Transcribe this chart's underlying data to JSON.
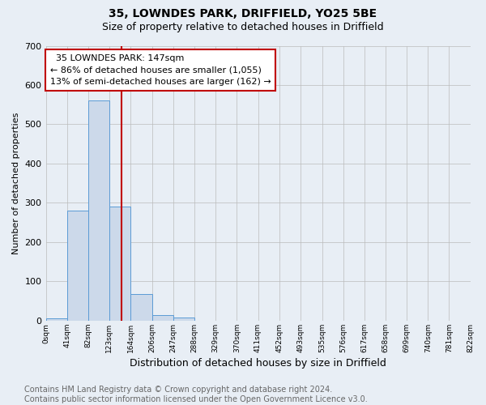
{
  "title": "35, LOWNDES PARK, DRIFFIELD, YO25 5BE",
  "subtitle": "Size of property relative to detached houses in Driffield",
  "xlabel": "Distribution of detached houses by size in Driffield",
  "ylabel": "Number of detached properties",
  "bin_edges": [
    0,
    41,
    82,
    123,
    164,
    206,
    247,
    288,
    329,
    370,
    411,
    452,
    493,
    535,
    576,
    617,
    658,
    699,
    740,
    781,
    822
  ],
  "bin_labels": [
    "0sqm",
    "41sqm",
    "82sqm",
    "123sqm",
    "164sqm",
    "206sqm",
    "247sqm",
    "288sqm",
    "329sqm",
    "370sqm",
    "411sqm",
    "452sqm",
    "493sqm",
    "535sqm",
    "576sqm",
    "617sqm",
    "658sqm",
    "699sqm",
    "740sqm",
    "781sqm",
    "822sqm"
  ],
  "counts": [
    5,
    280,
    560,
    290,
    68,
    14,
    9,
    0,
    0,
    0,
    0,
    0,
    0,
    0,
    0,
    0,
    0,
    0,
    0,
    0
  ],
  "bar_color": "#ccd9ea",
  "bar_edge_color": "#5b9bd5",
  "property_value": 147,
  "property_line_color": "#c00000",
  "annotation_line1": "  35 LOWNDES PARK: 147sqm",
  "annotation_line2": "← 86% of detached houses are smaller (1,055)",
  "annotation_line3": "13% of semi-detached houses are larger (162) →",
  "annotation_box_color": "#ffffff",
  "annotation_box_edge_color": "#c00000",
  "ylim": [
    0,
    700
  ],
  "yticks": [
    0,
    100,
    200,
    300,
    400,
    500,
    600,
    700
  ],
  "grid_color": "#bbbbbb",
  "bg_color": "#e8eef5",
  "plot_bg_color": "#e8eef5",
  "footer_text": "Contains HM Land Registry data © Crown copyright and database right 2024.\nContains public sector information licensed under the Open Government Licence v3.0.",
  "title_fontsize": 10,
  "subtitle_fontsize": 9,
  "annotation_fontsize": 8,
  "footer_fontsize": 7,
  "ylabel_fontsize": 8,
  "xlabel_fontsize": 9
}
